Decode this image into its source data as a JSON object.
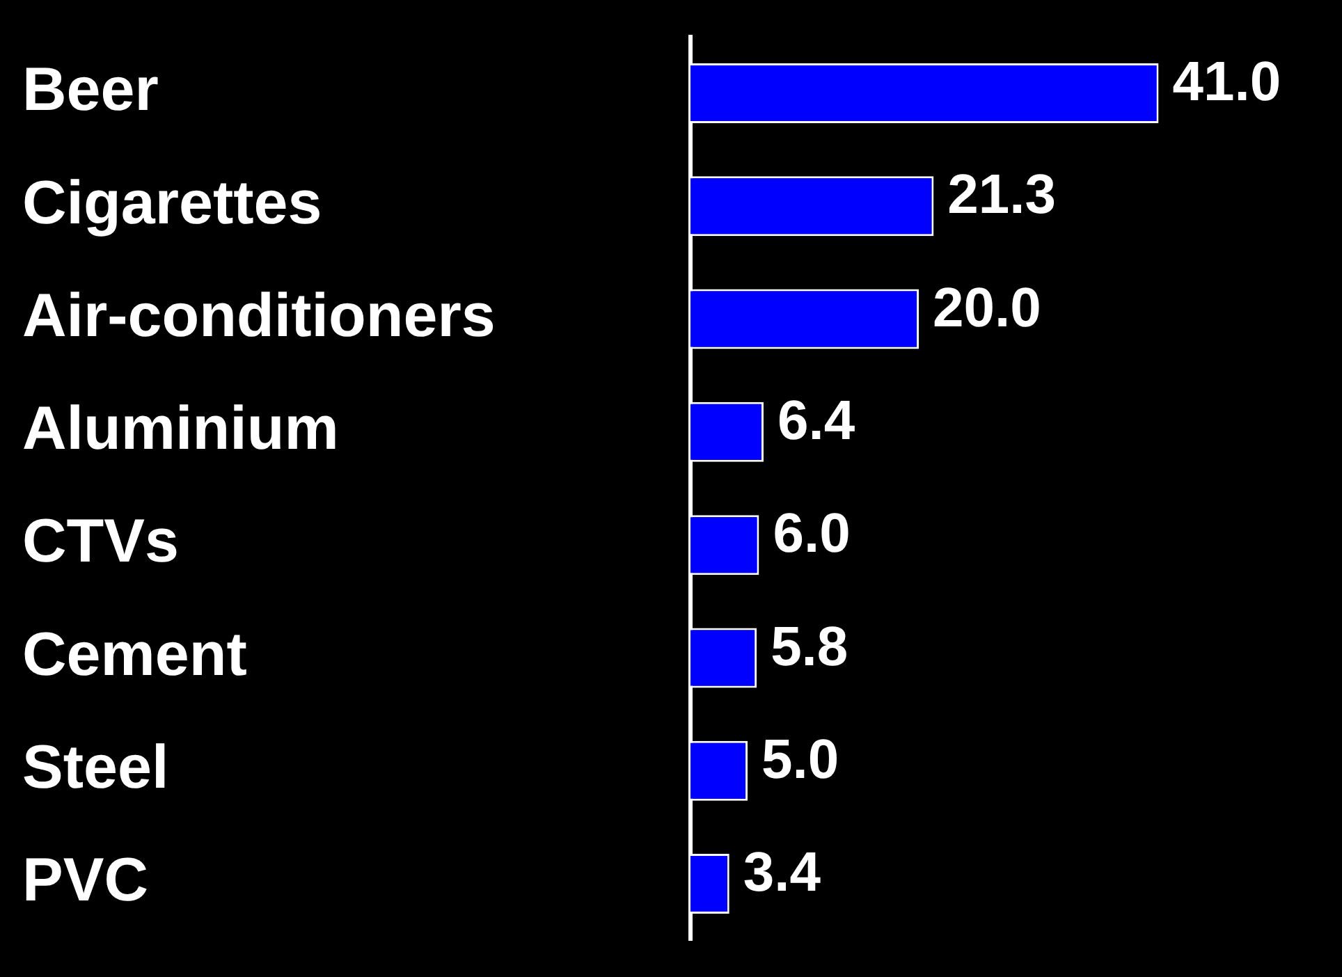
{
  "chart_data": {
    "type": "bar",
    "orientation": "horizontal",
    "categories": [
      "Beer",
      "Cigarettes",
      "Air-conditioners",
      "Aluminium",
      "CTVs",
      "Cement",
      "Steel",
      "PVC"
    ],
    "values": [
      41.0,
      21.3,
      20.0,
      6.4,
      6.0,
      5.8,
      5.0,
      3.4
    ],
    "value_labels": [
      "41.0",
      "21.3",
      "20.0",
      "6.4",
      "6.0",
      "5.8",
      "5.0",
      "3.4"
    ],
    "color": "#0000ff"
  }
}
